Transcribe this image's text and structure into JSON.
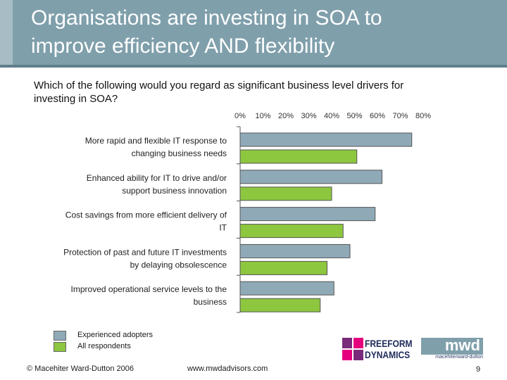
{
  "slide": {
    "title_line1": "Organisations are investing in SOA to",
    "title_line2": "improve efficiency AND flexibility",
    "question_line1": "Which of the following would you regard as significant business level drivers for",
    "question_line2": "investing in SOA?",
    "copyright": "© Macehiter Ward-Dutton 2006",
    "url": "www.mwdadvisors.com",
    "page_number": "9",
    "logos": {
      "freeform_line1": "FREEFORM",
      "freeform_line2": "DYNAMICS",
      "mwd_mark": "mwd",
      "mwd_sub": "macehiterward-dutton"
    }
  },
  "colors": {
    "header_bg": "#7f9fab",
    "experienced": "#8fa9b7",
    "all": "#8dc63f"
  },
  "chart_data": {
    "type": "bar",
    "orientation": "horizontal",
    "categories": [
      [
        "More rapid and flexible IT response to",
        "changing business needs"
      ],
      [
        "Enhanced ability for IT to drive and/or",
        "support business innovation"
      ],
      [
        "Cost savings from more efficient delivery of",
        "IT"
      ],
      [
        "Protection of past and future IT investments",
        "by delaying obsolescence"
      ],
      [
        "Improved operational service levels to the",
        "business"
      ]
    ],
    "series": [
      {
        "name": "Experienced adopters",
        "values": [
          75,
          62,
          59,
          48,
          41
        ]
      },
      {
        "name": "All respondents",
        "values": [
          51,
          40,
          45,
          38,
          35
        ]
      }
    ],
    "x_ticks": [
      "0%",
      "10%",
      "20%",
      "30%",
      "40%",
      "50%",
      "60%",
      "70%",
      "80%"
    ],
    "xlim": [
      0,
      80
    ],
    "legend_position": "bottom-left",
    "grid": false
  }
}
